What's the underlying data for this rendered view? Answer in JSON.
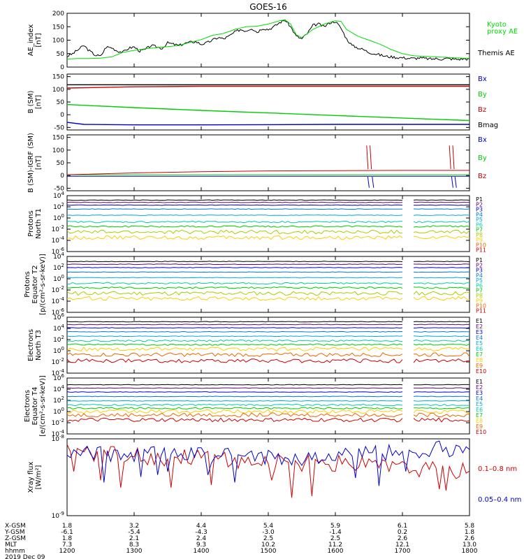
{
  "chart_data": {
    "type": "line",
    "title": "GOES-16",
    "x_tick_labels": [
      "1200",
      "1300",
      "1400",
      "1500",
      "1600",
      "1700",
      "1800"
    ],
    "orbit_table": {
      "rows": [
        {
          "label": "X-GSM",
          "values": [
            "1.8",
            "3.2",
            "4.4",
            "5.4",
            "5.9",
            "6.1",
            "5.8"
          ]
        },
        {
          "label": "Y-GSM",
          "values": [
            "-6.1",
            "-5.4",
            "-4.3",
            "-3.0",
            "-1.4",
            "0.2",
            "1.8"
          ]
        },
        {
          "label": "Z-GSM",
          "values": [
            "1.8",
            "2.1",
            "2.4",
            "2.5",
            "2.5",
            "2.6",
            "2.6"
          ]
        },
        {
          "label": "MLT",
          "values": [
            "7.3",
            "8.3",
            "9.3",
            "10.2",
            "11.2",
            "12.1",
            "13.0"
          ]
        },
        {
          "label": "hhmm",
          "values": [
            "1200",
            "1300",
            "1400",
            "1500",
            "1600",
            "1700",
            "1800"
          ]
        }
      ],
      "date": "2019 Dec 09"
    },
    "panels": [
      {
        "id": "ae",
        "ylabel": [
          "AE_index",
          "[nT]"
        ],
        "ylim": [
          0,
          200
        ],
        "y_ticks": [
          "0",
          "50",
          "100",
          "150",
          "200"
        ],
        "legend": [
          {
            "name": "Kyoto",
            "color": "#00dd00"
          },
          {
            "name": "proxy AE",
            "color": "#00dd00"
          },
          {
            "name": "Themis AE",
            "color": "#000000"
          }
        ],
        "series": [
          {
            "name": "Themis AE",
            "color": "#000000",
            "x": [
              1200,
              1205,
              1210,
              1215,
              1220,
              1225,
              1230,
              1235,
              1240,
              1245,
              1250,
              1255,
              1300,
              1305,
              1310,
              1315,
              1320,
              1325,
              1330,
              1335,
              1340,
              1345,
              1350,
              1355,
              1400,
              1405,
              1410,
              1415,
              1420,
              1425,
              1430,
              1435,
              1440,
              1445,
              1450,
              1455,
              1500,
              1505,
              1510,
              1515,
              1520,
              1525,
              1530,
              1535,
              1540,
              1545,
              1550,
              1555,
              1600,
              1605,
              1610,
              1615,
              1620,
              1625,
              1630,
              1635,
              1640,
              1645,
              1650,
              1655,
              1700,
              1705,
              1710,
              1715,
              1720,
              1725,
              1730,
              1735,
              1740,
              1745,
              1750,
              1755,
              1800
            ],
            "y": [
              40,
              50,
              65,
              80,
              60,
              45,
              40,
              75,
              72,
              60,
              55,
              70,
              75,
              60,
              65,
              80,
              75,
              70,
              90,
              85,
              80,
              88,
              92,
              95,
              85,
              90,
              100,
              110,
              105,
              115,
              130,
              140,
              135,
              145,
              130,
              145,
              140,
              150,
              165,
              175,
              150,
              115,
              105,
              125,
              155,
              160,
              150,
              165,
              170,
              145,
              105,
              80,
              72,
              65,
              55,
              50,
              45,
              40,
              38,
              36,
              35,
              33,
              32,
              34,
              32,
              30,
              31,
              30,
              32,
              30,
              29,
              31,
              30
            ]
          },
          {
            "name": "Kyoto proxy AE",
            "color": "#00dd00",
            "x": [
              1200,
              1210,
              1220,
              1230,
              1240,
              1250,
              1300,
              1310,
              1320,
              1330,
              1340,
              1350,
              1400,
              1410,
              1420,
              1430,
              1440,
              1450,
              1500,
              1510,
              1515,
              1520,
              1525,
              1530,
              1540,
              1550,
              1600,
              1605,
              1610,
              1620,
              1630,
              1640,
              1650,
              1700,
              1710,
              1720,
              1730,
              1740,
              1750,
              1800
            ],
            "y": [
              30,
              32,
              32,
              33,
              38,
              55,
              62,
              68,
              72,
              76,
              80,
              92,
              102,
              118,
              125,
              140,
              150,
              152,
              160,
              172,
              176,
              160,
              120,
              110,
              140,
              160,
              172,
              170,
              140,
              115,
              100,
              85,
              65,
              50,
              42,
              40,
              38,
              36,
              34,
              32
            ]
          }
        ]
      },
      {
        "id": "bsm",
        "ylabel": [
          "B (SM)",
          "[nT]"
        ],
        "ylim": [
          -60,
          160
        ],
        "y_ticks": [
          "-50",
          "0",
          "50",
          "100",
          "150"
        ],
        "legend": [
          {
            "name": "Bx",
            "color": "#0000cc"
          },
          {
            "name": "By",
            "color": "#00cc00"
          },
          {
            "name": "Bz",
            "color": "#cc0000"
          },
          {
            "name": "Bmag",
            "color": "#000000"
          }
        ],
        "series": [
          {
            "name": "Bx",
            "color": "#0000cc",
            "x": [
              1200,
              1215,
              1300,
              1400,
              1500,
              1600,
              1700,
              1800
            ],
            "y": [
              -30,
              -38,
              -40,
              -40,
              -39,
              -38,
              -38,
              -38
            ]
          },
          {
            "name": "By",
            "color": "#00cc00",
            "x": [
              1200,
              1300,
              1400,
              1500,
              1600,
              1700,
              1800
            ],
            "y": [
              40,
              28,
              17,
              7,
              -3,
              -13,
              -23
            ]
          },
          {
            "name": "Bz",
            "color": "#cc0000",
            "x": [
              1200,
              1300,
              1400,
              1500,
              1600,
              1700,
              1800
            ],
            "y": [
              105,
              110,
              112,
              112,
              112,
              112,
              112
            ]
          },
          {
            "name": "Bmag",
            "color": "#000000",
            "x": [
              1200,
              1300,
              1400,
              1500,
              1600,
              1700,
              1800
            ],
            "y": [
              118,
              118,
              118,
              118,
              118,
              118,
              118
            ]
          }
        ]
      },
      {
        "id": "bigrf",
        "ylabel": [
          "B (SM)-IGRF (SM)",
          "[nT]"
        ],
        "ylim": [
          -60,
          160
        ],
        "y_ticks": [
          "-50",
          "0",
          "50",
          "100",
          "150"
        ],
        "legend": [
          {
            "name": "Bx",
            "color": "#0000cc"
          },
          {
            "name": "By",
            "color": "#00cc00"
          },
          {
            "name": "Bz",
            "color": "#cc0000"
          }
        ],
        "series": [
          {
            "name": "Bx",
            "color": "#0000cc",
            "x": [
              1200,
              1300,
              1400,
              1500,
              1600,
              1700,
              1800
            ],
            "y": [
              -3,
              -3,
              -3,
              -3,
              -3,
              -3,
              -3
            ]
          },
          {
            "name": "By",
            "color": "#00cc00",
            "x": [
              1200,
              1300,
              1400,
              1500,
              1600,
              1700,
              1800
            ],
            "y": [
              3,
              3,
              3,
              3,
              3,
              3,
              3
            ]
          },
          {
            "name": "Bz",
            "color": "#cc0000",
            "x": [
              1200,
              1300,
              1400,
              1500,
              1600,
              1700,
              1800
            ],
            "y": [
              3,
              10,
              15,
              18,
              19,
              20,
              20
            ]
          }
        ]
      },
      {
        "id": "protons_t1",
        "ylabel": [
          "Protons",
          "North T1"
        ],
        "log": true,
        "ylim": [
          -6,
          4
        ],
        "y_ticks": [
          "10^4",
          "10^2",
          "10^0",
          "10^-2",
          "10^-4",
          "10^-6"
        ],
        "channels": [
          {
            "name": "P1",
            "color": "#000000",
            "level": 3.2
          },
          {
            "name": "P2",
            "color": "#660077",
            "level": 2.8
          },
          {
            "name": "P3",
            "color": "#0000cc",
            "level": 2.3
          },
          {
            "name": "P4",
            "color": "#0077dd",
            "level": 1.6
          },
          {
            "name": "P5",
            "color": "#00aadd",
            "level": 0.5
          },
          {
            "name": "P6",
            "color": "#00ccaa",
            "level": -0.7
          },
          {
            "name": "P7",
            "color": "#00cc00",
            "level": -1.5
          },
          {
            "name": "P8",
            "color": "#aacc00",
            "level": -2.5
          },
          {
            "name": "P9",
            "color": "#ffcc00",
            "level": -3.5
          },
          {
            "name": "P10",
            "color": "#ee6600",
            "level": null
          },
          {
            "name": "P11",
            "color": "#cc0000",
            "level": null
          }
        ]
      },
      {
        "id": "protons_t2",
        "ylabel": [
          "Protons",
          "Equator T2",
          "[p/(cm²-s-sr-keV)]"
        ],
        "log": true,
        "ylim": [
          -6,
          4
        ],
        "y_ticks": [
          "10^4",
          "10^2",
          "10^0",
          "10^-2",
          "10^-4",
          "10^-6"
        ],
        "channels": [
          {
            "name": "P1",
            "color": "#000000",
            "level": 3.1
          },
          {
            "name": "P2",
            "color": "#660077",
            "level": 2.6
          },
          {
            "name": "P3",
            "color": "#0000cc",
            "level": 2.0
          },
          {
            "name": "P4",
            "color": "#0077dd",
            "level": 1.2
          },
          {
            "name": "P5",
            "color": "#00aadd",
            "level": 0.2
          },
          {
            "name": "P6",
            "color": "#00ccaa",
            "level": -0.8
          },
          {
            "name": "P7",
            "color": "#00cc00",
            "level": -1.6
          },
          {
            "name": "P8",
            "color": "#aacc00",
            "level": -2.6
          },
          {
            "name": "P9",
            "color": "#ffcc00",
            "level": -3.5
          },
          {
            "name": "P10",
            "color": "#ee6600",
            "level": null
          },
          {
            "name": "P11",
            "color": "#cc0000",
            "level": null
          }
        ]
      },
      {
        "id": "electrons_t3",
        "ylabel": [
          "Electrons",
          "North T3"
        ],
        "log": true,
        "ylim": [
          -4,
          6
        ],
        "y_ticks": [
          "10^6",
          "10^4",
          "10^2",
          "10^0",
          "10^-2",
          "10^-4"
        ],
        "channels": [
          {
            "name": "E1",
            "color": "#000000",
            "level": 5.2
          },
          {
            "name": "E2",
            "color": "#660077",
            "level": 4.7
          },
          {
            "name": "E3",
            "color": "#0000cc",
            "level": 4.1
          },
          {
            "name": "E4",
            "color": "#0077dd",
            "level": 3.4
          },
          {
            "name": "E5",
            "color": "#00aadd",
            "level": 2.6
          },
          {
            "name": "E6",
            "color": "#00ccaa",
            "level": 1.8
          },
          {
            "name": "E7",
            "color": "#00cc00",
            "level": 1.1
          },
          {
            "name": "E8",
            "color": "#ffcc00",
            "level": 0.3
          },
          {
            "name": "E9",
            "color": "#ee6600",
            "level": -0.7
          },
          {
            "name": "E10",
            "color": "#cc0000",
            "level": -1.8
          }
        ]
      },
      {
        "id": "electrons_t4",
        "ylabel": [
          "Electrons",
          "Equator T4",
          "[e/(cm²-s-sr-keV)]"
        ],
        "log": true,
        "ylim": [
          -4,
          6
        ],
        "y_ticks": [
          "10^6",
          "10^4",
          "10^2",
          "10^0",
          "10^-2",
          "10^-4"
        ],
        "channels": [
          {
            "name": "E1",
            "color": "#000000",
            "level": 4.8
          },
          {
            "name": "E2",
            "color": "#660077",
            "level": 4.2
          },
          {
            "name": "E3",
            "color": "#0000cc",
            "level": 3.5
          },
          {
            "name": "E4",
            "color": "#0077dd",
            "level": 2.7
          },
          {
            "name": "E5",
            "color": "#00aadd",
            "level": 1.9
          },
          {
            "name": "E6",
            "color": "#00ccaa",
            "level": 1.2
          },
          {
            "name": "E7",
            "color": "#00cc00",
            "level": 0.6
          },
          {
            "name": "E8",
            "color": "#ffcc00",
            "level": 0.0
          },
          {
            "name": "E9",
            "color": "#ee6600",
            "level": -0.6
          },
          {
            "name": "E10",
            "color": "#cc0000",
            "level": -1.5
          }
        ]
      },
      {
        "id": "xray",
        "ylabel": [
          "Xray flux",
          "[W/m²]"
        ],
        "log": true,
        "ylim": [
          -9,
          -8
        ],
        "y_ticks": [
          "10^-8",
          "10^-9"
        ],
        "legend": [
          {
            "name": "0.1–0.8 nm",
            "color": "#cc0000"
          },
          {
            "name": "0.05–0.4 nm",
            "color": "#0000cc"
          }
        ],
        "series": [
          {
            "name": "0.1-0.8 nm",
            "color": "#cc0000",
            "x": [
              1200,
              1230,
              1300,
              1330,
              1400,
              1430,
              1500,
              1530,
              1600,
              1630,
              1700,
              1730,
              1800
            ],
            "y": [
              -8.18,
              -8.2,
              -8.22,
              -8.25,
              -8.22,
              -8.3,
              -8.28,
              -8.32,
              -8.32,
              -8.35,
              -8.38,
              -8.4,
              -8.42
            ]
          },
          {
            "name": "0.05-0.4 nm",
            "color": "#0000cc",
            "x": [
              1200,
              1230,
              1300,
              1330,
              1400,
              1430,
              1500,
              1530,
              1600,
              1630,
              1700,
              1730,
              1800
            ],
            "y": [
              -8.16,
              -8.2,
              -8.22,
              -8.18,
              -8.22,
              -8.2,
              -8.25,
              -8.25,
              -8.22,
              -8.2,
              -8.18,
              -8.12,
              -8.14
            ]
          }
        ]
      }
    ]
  }
}
